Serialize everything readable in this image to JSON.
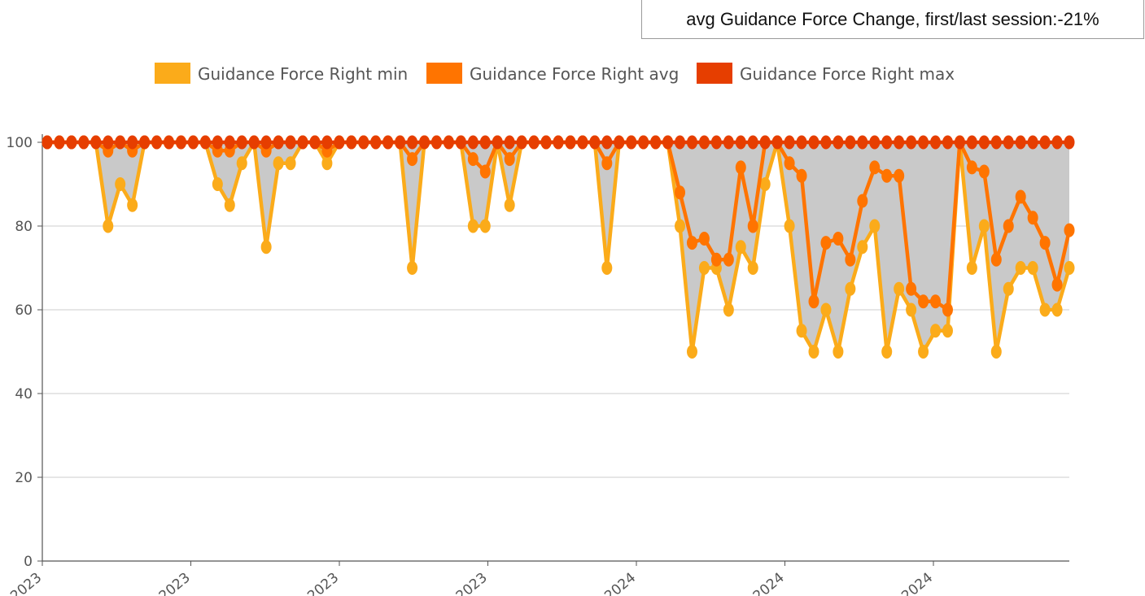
{
  "summary": {
    "text": "avg Guidance Force Change, first/last session:-21%"
  },
  "chart_data": {
    "type": "line",
    "title": "",
    "xlabel": "",
    "ylabel": "",
    "ylim": [
      0,
      100
    ],
    "yticks": [
      0,
      20,
      40,
      60,
      80,
      100
    ],
    "grid": true,
    "legend_position": "top-center",
    "x_tick_labels": [
      "2023",
      "2023",
      "2023",
      "2023",
      "2024",
      "2024",
      "2024"
    ],
    "band_fill": "#c9c9c9",
    "series": [
      {
        "name": "Guidance Force Right min",
        "color": "#fbab1a",
        "values": [
          100,
          100,
          100,
          100,
          100,
          80,
          90,
          85,
          100,
          100,
          100,
          100,
          100,
          100,
          90,
          85,
          95,
          100,
          75,
          95,
          95,
          100,
          100,
          95,
          100,
          100,
          100,
          100,
          100,
          100,
          70,
          100,
          100,
          100,
          100,
          80,
          80,
          100,
          85,
          100,
          100,
          100,
          100,
          100,
          100,
          100,
          70,
          100,
          100,
          100,
          100,
          100,
          80,
          50,
          70,
          70,
          60,
          75,
          70,
          90,
          100,
          80,
          55,
          50,
          60,
          50,
          65,
          75,
          80,
          50,
          65,
          60,
          50,
          55,
          55,
          100,
          70,
          80,
          50,
          65,
          70,
          70,
          60,
          60,
          70
        ]
      },
      {
        "name": "Guidance Force Right avg",
        "color": "#ff7400",
        "values": [
          100,
          100,
          100,
          100,
          100,
          98,
          100,
          98,
          100,
          100,
          100,
          100,
          100,
          100,
          98,
          98,
          100,
          100,
          98,
          100,
          100,
          100,
          100,
          98,
          100,
          100,
          100,
          100,
          100,
          100,
          96,
          100,
          100,
          100,
          100,
          96,
          93,
          100,
          96,
          100,
          100,
          100,
          100,
          100,
          100,
          100,
          95,
          100,
          100,
          100,
          100,
          100,
          88,
          76,
          77,
          72,
          72,
          94,
          80,
          100,
          100,
          95,
          92,
          62,
          76,
          77,
          72,
          86,
          94,
          92,
          92,
          65,
          62,
          62,
          60,
          100,
          94,
          93,
          72,
          80,
          87,
          82,
          76,
          66,
          79
        ]
      },
      {
        "name": "Guidance Force Right max",
        "color": "#e63e00",
        "values": [
          100,
          100,
          100,
          100,
          100,
          100,
          100,
          100,
          100,
          100,
          100,
          100,
          100,
          100,
          100,
          100,
          100,
          100,
          100,
          100,
          100,
          100,
          100,
          100,
          100,
          100,
          100,
          100,
          100,
          100,
          100,
          100,
          100,
          100,
          100,
          100,
          100,
          100,
          100,
          100,
          100,
          100,
          100,
          100,
          100,
          100,
          100,
          100,
          100,
          100,
          100,
          100,
          100,
          100,
          100,
          100,
          100,
          100,
          100,
          100,
          100,
          100,
          100,
          100,
          100,
          100,
          100,
          100,
          100,
          100,
          100,
          100,
          100,
          100,
          100,
          100,
          100,
          100,
          100,
          100,
          100,
          100,
          100,
          100,
          100
        ]
      }
    ]
  }
}
